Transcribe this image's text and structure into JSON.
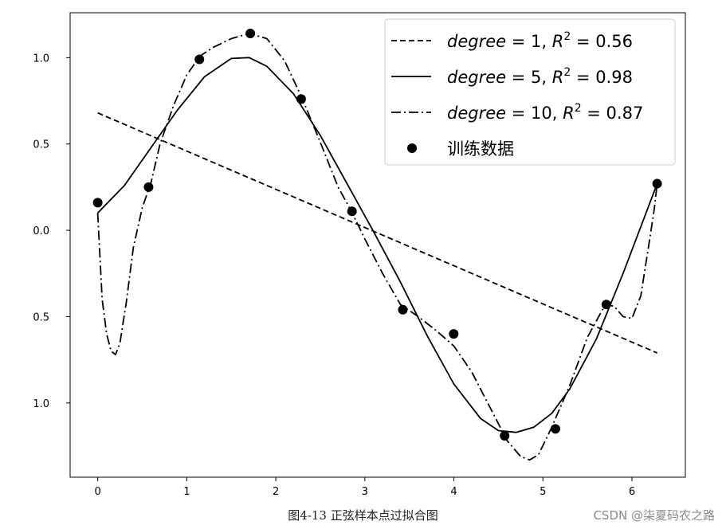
{
  "chart_data": {
    "type": "line",
    "x_range": [
      -0.31,
      6.6
    ],
    "y_range": [
      -1.43,
      1.26
    ],
    "xticks": [
      0,
      1,
      2,
      3,
      4,
      5,
      6
    ],
    "xtick_labels": [
      "0",
      "1",
      "2",
      "3",
      "4",
      "5",
      "6"
    ],
    "yticks": [
      1.0,
      0.5,
      0.0,
      -0.5,
      -1.0
    ],
    "ytick_labels": [
      "1.0",
      "0.5",
      "0.0",
      "0.5",
      "1.0"
    ],
    "legend_position": "upper-right",
    "series": [
      {
        "name": "degree = 1, R^2 = 0.56",
        "legend": {
          "italic": "degree",
          "rest": " = 1, ",
          "r": "R",
          "sup": "2",
          "tail": " = 0.56"
        },
        "style": "dashed",
        "x": [
          0,
          6.2832
        ],
        "y": [
          0.68,
          -0.71
        ]
      },
      {
        "name": "degree = 5, R^2 = 0.98",
        "legend": {
          "italic": "degree",
          "rest": " = 5, ",
          "r": "R",
          "sup": "2",
          "tail": " = 0.98"
        },
        "style": "solid",
        "x": [
          0,
          0.3,
          0.6,
          0.9,
          1.2,
          1.5,
          1.7,
          1.9,
          2.2,
          2.5,
          2.8,
          3.1,
          3.4,
          3.7,
          4.0,
          4.3,
          4.5,
          4.7,
          4.9,
          5.1,
          5.3,
          5.6,
          5.9,
          6.2832
        ],
        "y": [
          0.1,
          0.26,
          0.48,
          0.7,
          0.89,
          0.995,
          1.0,
          0.95,
          0.79,
          0.55,
          0.27,
          -0.01,
          -0.3,
          -0.61,
          -0.89,
          -1.09,
          -1.16,
          -1.17,
          -1.14,
          -1.06,
          -0.92,
          -0.63,
          -0.25,
          0.27
        ]
      },
      {
        "name": "degree = 10, R^2 = 0.87",
        "legend": {
          "italic": "degree",
          "rest": " = 10, ",
          "r": "R",
          "sup": "2",
          "tail": " = 0.87"
        },
        "style": "dashdot",
        "x": [
          0,
          0.05,
          0.1,
          0.15,
          0.2,
          0.25,
          0.32,
          0.4,
          0.5,
          0.6,
          0.7,
          0.85,
          1.0,
          1.15,
          1.3,
          1.5,
          1.7,
          1.9,
          2.1,
          2.3,
          2.5,
          2.7,
          2.85,
          3.0,
          3.2,
          3.4,
          3.6,
          3.8,
          4.0,
          4.2,
          4.4,
          4.6,
          4.75,
          4.85,
          4.95,
          5.1,
          5.3,
          5.5,
          5.7,
          5.8,
          5.9,
          6.0,
          6.1,
          6.2,
          6.25,
          6.2832
        ],
        "y": [
          0.1,
          -0.4,
          -0.6,
          -0.7,
          -0.72,
          -0.65,
          -0.42,
          -0.1,
          0.13,
          0.28,
          0.5,
          0.72,
          0.9,
          1.01,
          1.06,
          1.11,
          1.14,
          1.11,
          0.98,
          0.76,
          0.51,
          0.25,
          0.11,
          -0.05,
          -0.25,
          -0.43,
          -0.5,
          -0.58,
          -0.67,
          -0.82,
          -1.02,
          -1.22,
          -1.31,
          -1.33,
          -1.3,
          -1.14,
          -0.9,
          -0.62,
          -0.43,
          -0.44,
          -0.5,
          -0.51,
          -0.38,
          -0.05,
          0.12,
          0.27
        ]
      },
      {
        "name": "训练数据",
        "style": "scatter",
        "x": [
          0,
          0.571,
          1.142,
          1.714,
          2.285,
          2.856,
          3.427,
          3.998,
          4.57,
          5.141,
          5.712,
          6.283
        ],
        "y": [
          0.16,
          0.25,
          0.99,
          1.14,
          0.76,
          0.11,
          -0.46,
          -0.6,
          -1.19,
          -1.15,
          -0.43,
          0.27
        ]
      }
    ]
  },
  "caption": "图4-13 正弦样本点过拟合图",
  "watermark": "CSDN @柒夏码农之路"
}
